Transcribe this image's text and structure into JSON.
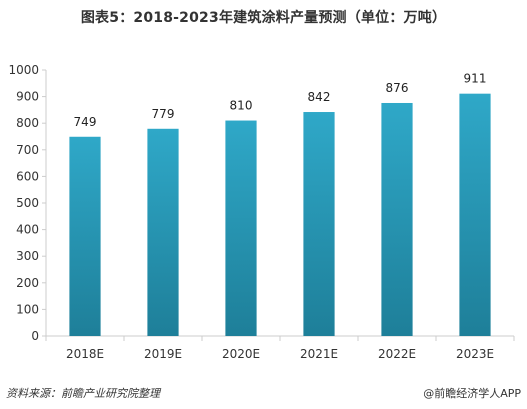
{
  "chart_data": {
    "type": "bar",
    "title": "图表5：2018-2023年建筑涂料产量预测（单位：万吨）",
    "categories": [
      "2018E",
      "2019E",
      "2020E",
      "2021E",
      "2022E",
      "2023E"
    ],
    "values": [
      749,
      779,
      810,
      842,
      876,
      911
    ],
    "value_labels": [
      "749",
      "779",
      "810",
      "842",
      "876",
      "911"
    ],
    "ylim": [
      0,
      1000
    ],
    "yticks": [
      "0",
      "100",
      "200",
      "300",
      "400",
      "500",
      "600",
      "700",
      "800",
      "900",
      "1000"
    ],
    "grid": false,
    "bar_color_top": "#2fa8c8",
    "bar_color_bottom": "#1e7f99",
    "axis_color": "#cccccc"
  },
  "footer": {
    "source": "资料来源：前瞻产业研究院整理",
    "brand": "@前瞻经济学人APP"
  }
}
